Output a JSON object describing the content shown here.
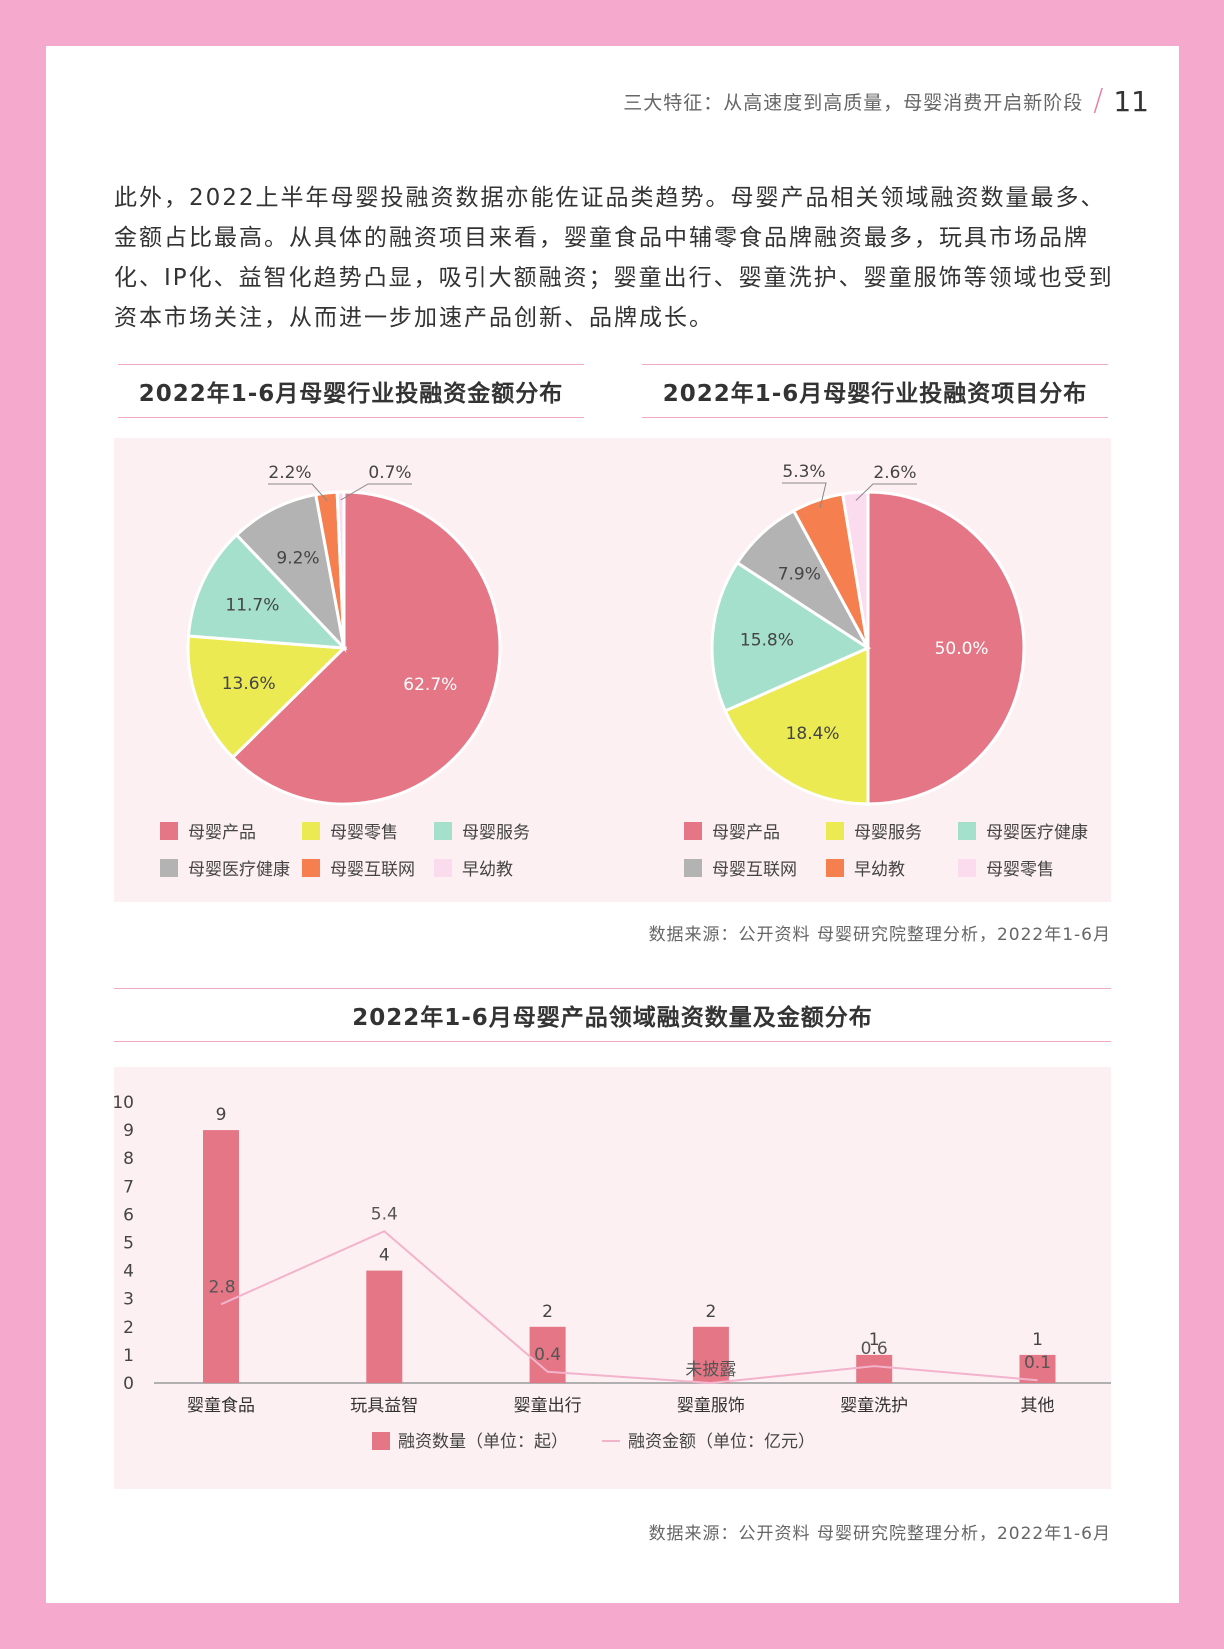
{
  "header": {
    "title": "三大特征：从高速度到高质量，母婴消费开启新阶段",
    "page_number": "11"
  },
  "intro": "此外，2022上半年母婴投融资数据亦能佐证品类趋势。母婴产品相关领域融资数量最多、金额占比最高。从具体的融资项目来看，婴童食品中辅零食品牌融资最多，玩具市场品牌化、IP化、益智化趋势凸显，吸引大额融资；婴童出行、婴童洗护、婴童服饰等领域也受到资本市场关注，从而进一步加速产品创新、品牌成长。",
  "source_text": "数据来源：公开资料 母婴研究院整理分析，2022年1-6月",
  "chart_data": [
    {
      "type": "pie",
      "title": "2022年1-6月母婴行业投融资金额分布",
      "slices": [
        {
          "name": "母婴产品",
          "value": 62.7,
          "label": "62.7%",
          "color": "#e47686"
        },
        {
          "name": "母婴零售",
          "value": 13.6,
          "label": "13.6%",
          "color": "#ecea52"
        },
        {
          "name": "母婴服务",
          "value": 11.7,
          "label": "11.7%",
          "color": "#a4e0cb"
        },
        {
          "name": "母婴医疗健康",
          "value": 9.2,
          "label": "9.2%",
          "color": "#b3b3b3"
        },
        {
          "name": "母婴互联网",
          "value": 2.2,
          "label": "2.2%",
          "color": "#f57f4e"
        },
        {
          "name": "早幼教",
          "value": 0.7,
          "label": "0.7%",
          "color": "#fbdcef"
        }
      ]
    },
    {
      "type": "pie",
      "title": "2022年1-6月母婴行业投融资项目分布",
      "slices": [
        {
          "name": "母婴产品",
          "value": 50.0,
          "label": "50.0%",
          "color": "#e47686"
        },
        {
          "name": "母婴服务",
          "value": 18.4,
          "label": "18.4%",
          "color": "#ecea52"
        },
        {
          "name": "母婴医疗健康",
          "value": 15.8,
          "label": "15.8%",
          "color": "#a4e0cb"
        },
        {
          "name": "母婴互联网",
          "value": 7.9,
          "label": "7.9%",
          "color": "#b3b3b3"
        },
        {
          "name": "早幼教",
          "value": 5.3,
          "label": "5.3%",
          "color": "#f57f4e"
        },
        {
          "name": "母婴零售",
          "value": 2.6,
          "label": "2.6%",
          "color": "#fbdcef"
        }
      ]
    },
    {
      "type": "bar",
      "title": "2022年1-6月母婴产品领域融资数量及金额分布",
      "categories": [
        "婴童食品",
        "玩具益智",
        "婴童出行",
        "婴童服饰",
        "婴童洗护",
        "其他"
      ],
      "ylim": [
        0,
        10
      ],
      "yticks": [
        0,
        1,
        2,
        3,
        4,
        5,
        6,
        7,
        8,
        9,
        10
      ],
      "series": [
        {
          "name": "融资数量（单位：起）",
          "type": "bar",
          "color": "#e47686",
          "values": [
            9,
            4,
            2,
            2,
            1,
            1
          ],
          "labels": [
            "9",
            "4",
            "2",
            "2",
            "1",
            "1"
          ]
        },
        {
          "name": "融资金额（单位：亿元）",
          "type": "line",
          "color": "#f3b3cc",
          "values": [
            2.8,
            5.4,
            0.4,
            0,
            0.6,
            0.1
          ],
          "labels": [
            "2.8",
            "5.4",
            "0.4",
            "未披露",
            "0.6",
            "0.1"
          ]
        }
      ]
    }
  ]
}
